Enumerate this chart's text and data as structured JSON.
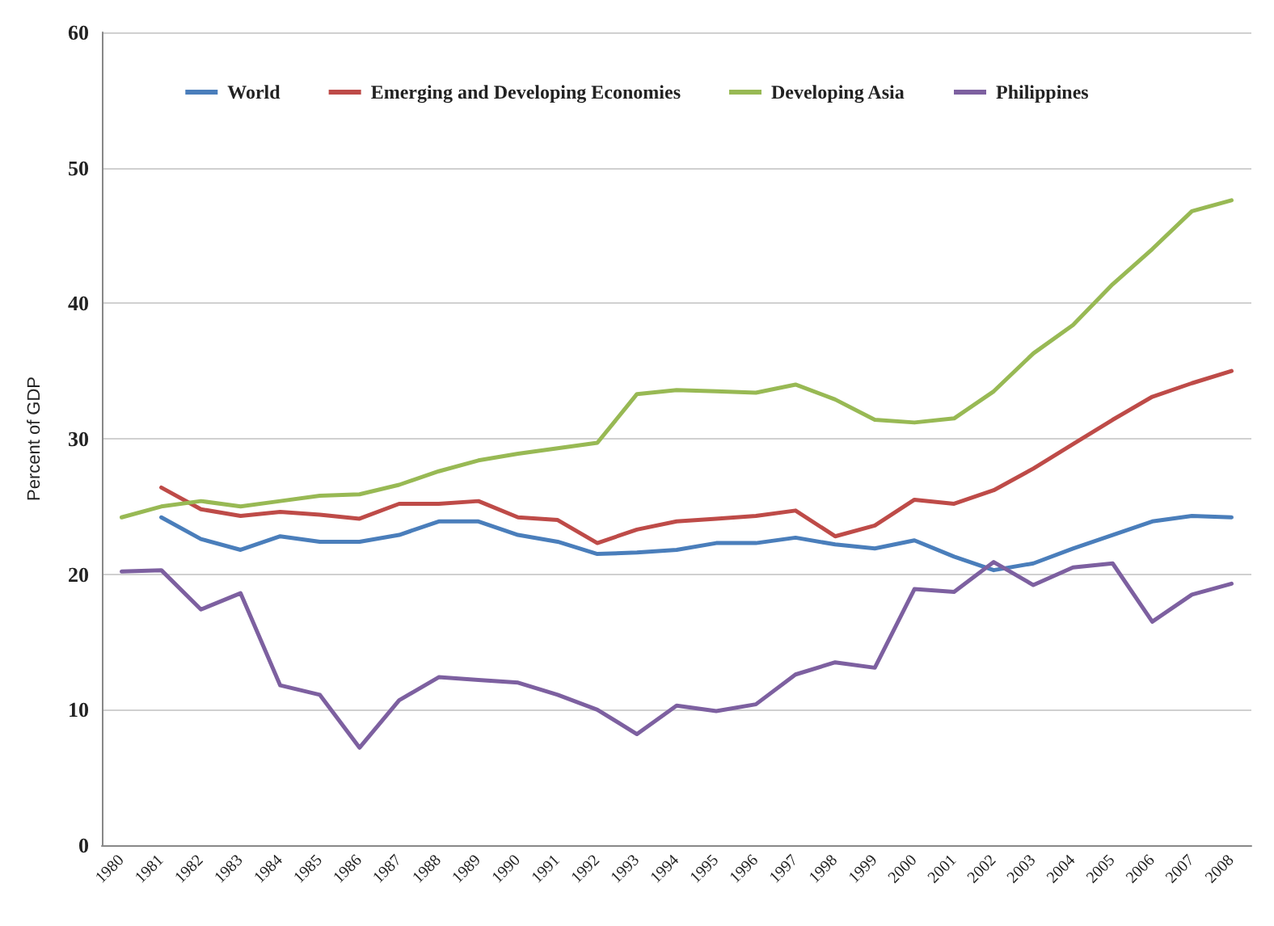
{
  "chart_data": {
    "type": "line",
    "ylabel": "Percent of GDP",
    "categories": [
      "1980",
      "1981",
      "1982",
      "1983",
      "1984",
      "1985",
      "1986",
      "1987",
      "1988",
      "1989",
      "1990",
      "1991",
      "1992",
      "1993",
      "1994",
      "1995",
      "1996",
      "1997",
      "1998",
      "1999",
      "2000",
      "2001",
      "2002",
      "2003",
      "2004",
      "2005",
      "2006",
      "2007",
      "2008"
    ],
    "series": [
      {
        "name": "World",
        "color": "#4a7ebb",
        "values": [
          null,
          24.2,
          22.6,
          21.8,
          22.8,
          22.4,
          22.4,
          22.9,
          23.9,
          23.9,
          22.9,
          22.4,
          21.5,
          21.6,
          21.8,
          22.3,
          22.3,
          22.7,
          22.2,
          21.9,
          22.5,
          21.3,
          20.3,
          20.8,
          21.9,
          22.9,
          23.9,
          24.3,
          24.2
        ]
      },
      {
        "name": "Emerging and Developing Economies",
        "color": "#be4b48",
        "values": [
          null,
          26.4,
          24.8,
          24.3,
          24.6,
          24.4,
          24.1,
          25.2,
          25.2,
          25.4,
          24.2,
          24.0,
          22.3,
          23.3,
          23.9,
          24.1,
          24.3,
          24.7,
          22.8,
          23.6,
          25.5,
          25.2,
          26.2,
          27.8,
          29.6,
          31.4,
          33.1,
          34.1,
          35.0
        ]
      },
      {
        "name": "Developing Asia",
        "color": "#98b954",
        "values": [
          24.2,
          25.0,
          25.4,
          25.0,
          25.4,
          25.8,
          25.9,
          26.6,
          27.6,
          28.4,
          28.9,
          29.3,
          29.7,
          33.3,
          33.6,
          33.5,
          33.4,
          34.0,
          32.9,
          31.4,
          31.2,
          31.5,
          33.5,
          36.3,
          38.4,
          41.4,
          44.0,
          46.8,
          47.6
        ]
      },
      {
        "name": "Philippines",
        "color": "#7d60a0",
        "values": [
          20.2,
          20.3,
          17.4,
          18.6,
          11.8,
          11.1,
          7.2,
          10.7,
          12.4,
          12.2,
          12.0,
          11.1,
          10.0,
          8.2,
          10.3,
          9.9,
          10.4,
          12.6,
          13.5,
          13.1,
          18.9,
          18.7,
          20.9,
          19.2,
          20.5,
          20.8,
          16.5,
          18.5,
          19.3
        ]
      }
    ],
    "ylim": [
      0,
      60
    ],
    "yticks": [
      0,
      10,
      20,
      30,
      40,
      50,
      60
    ],
    "grid": "y",
    "legend": "top",
    "marker": "none",
    "line_style": "solid"
  }
}
